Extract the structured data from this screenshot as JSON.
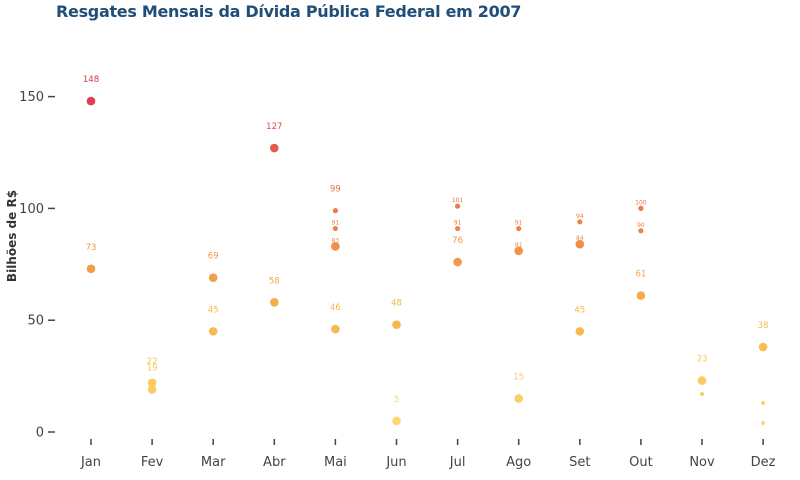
{
  "chart_data": {
    "type": "scatter",
    "title": "Resgates Mensais da Dívida Pública Federal em 2007",
    "ylabel": "Bilhões de R$",
    "xlabel": "",
    "ylim": [
      -5,
      170
    ],
    "yticks": [
      0,
      50,
      100,
      150
    ],
    "categories": [
      "Jan",
      "Fev",
      "Mar",
      "Abr",
      "Mai",
      "Jun",
      "Jul",
      "Ago",
      "Set",
      "Out",
      "Nov",
      "Dez"
    ],
    "grid": false,
    "legend": "none",
    "colors": {
      "low": "#fdd86a",
      "mid": "#f5a83e",
      "high": "#d9364a"
    },
    "points": [
      {
        "x": "Jan",
        "y": 73,
        "label": "73"
      },
      {
        "x": "Jan",
        "y": 148,
        "label": "148"
      },
      {
        "x": "Fev",
        "y": 22,
        "label": "22"
      },
      {
        "x": "Fev",
        "y": 19,
        "label": "19"
      },
      {
        "x": "Mar",
        "y": 45,
        "label": "45"
      },
      {
        "x": "Mar",
        "y": 69,
        "label": "69"
      },
      {
        "x": "Abr",
        "y": 58,
        "label": "58"
      },
      {
        "x": "Abr",
        "y": 127,
        "label": "127"
      },
      {
        "x": "Mai",
        "y": 46,
        "label": "46"
      },
      {
        "x": "Mai",
        "y": 99,
        "label": "99"
      },
      {
        "x": "Mai",
        "y": 91,
        "label": "91"
      },
      {
        "x": "Mai",
        "y": 83,
        "label": "83"
      },
      {
        "x": "Jun",
        "y": 48,
        "label": "48"
      },
      {
        "x": "Jun",
        "y": 5,
        "label": "5"
      },
      {
        "x": "Jul",
        "y": 76,
        "label": "76"
      },
      {
        "x": "Jul",
        "y": 91,
        "label": "91"
      },
      {
        "x": "Jul",
        "y": 101,
        "label": "101"
      },
      {
        "x": "Ago",
        "y": 15,
        "label": "15"
      },
      {
        "x": "Ago",
        "y": 81,
        "label": "81"
      },
      {
        "x": "Ago",
        "y": 91,
        "label": "91"
      },
      {
        "x": "Set",
        "y": 45,
        "label": "45"
      },
      {
        "x": "Set",
        "y": 84,
        "label": "84"
      },
      {
        "x": "Set",
        "y": 94,
        "label": "94"
      },
      {
        "x": "Out",
        "y": 61,
        "label": "61"
      },
      {
        "x": "Out",
        "y": 90,
        "label": "90"
      },
      {
        "x": "Out",
        "y": 100,
        "label": "100"
      },
      {
        "x": "Nov",
        "y": 23,
        "label": "23"
      },
      {
        "x": "Nov",
        "y": 17,
        "label": ""
      },
      {
        "x": "Dez",
        "y": 38,
        "label": "38"
      },
      {
        "x": "Dez",
        "y": 4,
        "label": ""
      },
      {
        "x": "Dez",
        "y": 13,
        "label": ""
      }
    ]
  }
}
